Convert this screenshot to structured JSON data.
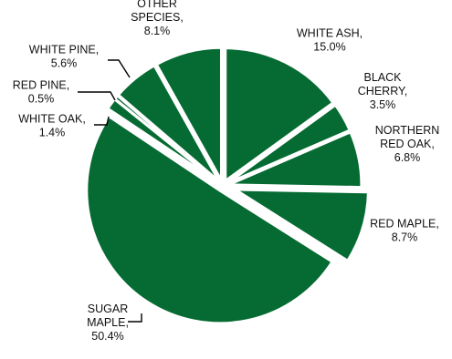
{
  "chart_data": {
    "type": "pie",
    "exploded": true,
    "color": "#056b32",
    "separator_color": "#ffffff",
    "label_color": "#111111",
    "slices": [
      {
        "name": "WHITE ASH",
        "value": 15.0,
        "label_lines": [
          "WHITE ASH,",
          "15.0%"
        ]
      },
      {
        "name": "BLACK CHERRY",
        "value": 3.5,
        "label_lines": [
          "BLACK",
          "CHERRY,",
          "3.5%"
        ]
      },
      {
        "name": "NORTHERN RED OAK",
        "value": 6.8,
        "label_lines": [
          "NORTHERN",
          "RED OAK,",
          "6.8%"
        ]
      },
      {
        "name": "RED MAPLE",
        "value": 8.7,
        "label_lines": [
          "RED MAPLE,",
          "8.7%"
        ]
      },
      {
        "name": "SUGAR MAPLE",
        "value": 50.4,
        "label_lines": [
          "SUGAR",
          "MAPLE,",
          "50.4%"
        ]
      },
      {
        "name": "WHITE OAK",
        "value": 1.4,
        "label_lines": [
          "WHITE OAK,",
          "1.4%"
        ]
      },
      {
        "name": "RED PINE",
        "value": 0.5,
        "label_lines": [
          "RED PINE,",
          "0.5%"
        ]
      },
      {
        "name": "WHITE PINE",
        "value": 5.6,
        "label_lines": [
          "WHITE PINE,",
          "5.6%"
        ]
      },
      {
        "name": "OTHER SPECIES",
        "value": 8.1,
        "label_lines": [
          "OTHER",
          "SPECIES,",
          "8.1%"
        ]
      }
    ]
  }
}
